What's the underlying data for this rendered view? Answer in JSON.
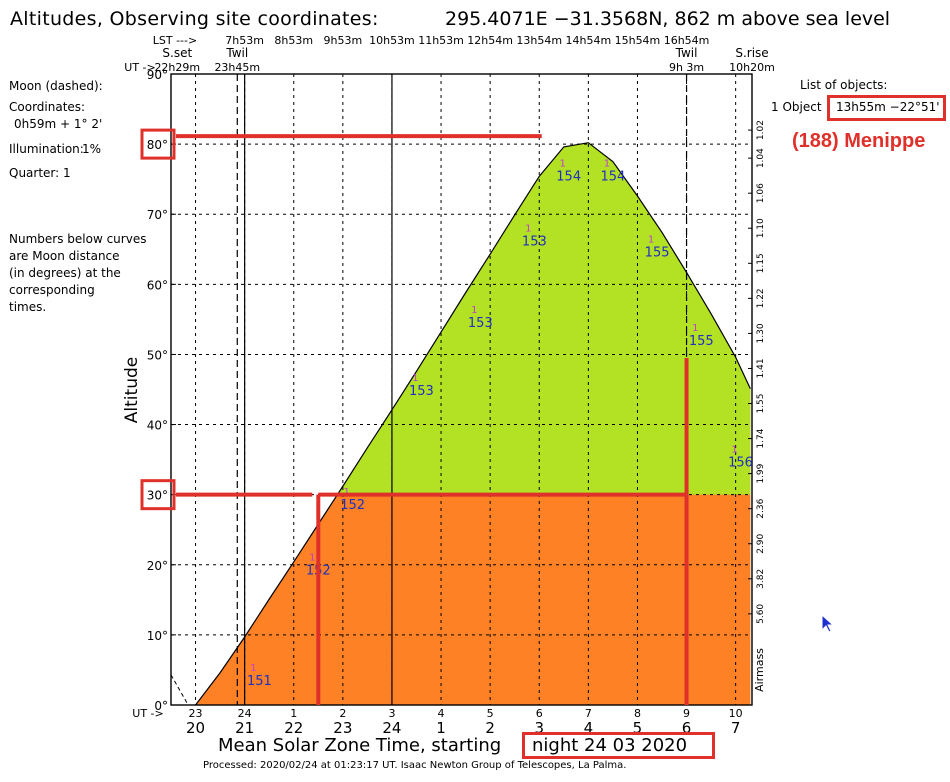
{
  "header": {
    "title": "Altitudes, Observing site coordinates:",
    "site": "295.4071E −31.3568N,  862 m above sea level"
  },
  "lst_row": {
    "label": "LST --->",
    "ticks": [
      "7h53m",
      "8h53m",
      "9h53m",
      "10h53m",
      "11h53m",
      "12h54m",
      "13h54m",
      "14h54m",
      "15h54m",
      "16h54m"
    ]
  },
  "events": {
    "sunset_label": "S.set",
    "twil_label": "Twil",
    "sunrise_label": "S.rise",
    "ut_label": "UT ->",
    "sunset_time": "22h29m",
    "twil_eve_time": "23h45m",
    "twil_morn_time": "9h 3m",
    "sunrise_time": "10h20m"
  },
  "moon_panel": {
    "heading": "Moon (dashed):",
    "coord_label": "Coordinates:",
    "coord_value": "0h59m  + 1° 2'",
    "illum_label": "Illumination:",
    "illum_value": "1%",
    "quarter": "Quarter: 1",
    "note_lines": [
      "Numbers below curves",
      "are Moon distance",
      "(in degrees) at the",
      "corresponding",
      "times."
    ]
  },
  "objects": {
    "heading": "List of objects:",
    "item_prefix": "1 Object",
    "coords": "13h55m −22°51'",
    "name": "(188) Menippe"
  },
  "footer": {
    "caption_prefix": "Mean Solar Zone Time, starting",
    "night": "night 24 03 2020",
    "processed": "Processed: 2020/02/24 at 01:23:17 UT. Isaac  Newton Group of Telescopes, La Palma."
  },
  "chart_data": {
    "type": "area",
    "title": "Altitudes, Observing site coordinates:",
    "ylabel": "Altitude",
    "y2label": "Airmass",
    "xlabel": "Mean Solar Zone Time, starting night 24 03 2020",
    "ylim": [
      0,
      90
    ],
    "xlim": [
      19.5,
      31.3
    ],
    "yticks": [
      0,
      10,
      20,
      30,
      40,
      50,
      60,
      70,
      80,
      90
    ],
    "ytick_labels": [
      "0°",
      "10°",
      "20°",
      "30°",
      "40°",
      "50°",
      "60°",
      "70°",
      "80°",
      "90°"
    ],
    "xtick_values": [
      20,
      21,
      22,
      23,
      24,
      25,
      26,
      27,
      28,
      29,
      30,
      31
    ],
    "xtick_labels": [
      "20",
      "21",
      "22",
      "23",
      "24",
      "1",
      "2",
      "3",
      "4",
      "5",
      "6",
      "7"
    ],
    "ut_tick_labels": [
      "23",
      "24",
      "1",
      "2",
      "3",
      "4",
      "5",
      "6",
      "7",
      "8",
      "9",
      "10"
    ],
    "airmass_labels": [
      {
        "alt": 82,
        "label": "1.02"
      },
      {
        "alt": 78,
        "label": "1.04"
      },
      {
        "alt": 73,
        "label": "1.06"
      },
      {
        "alt": 68,
        "label": "1.10"
      },
      {
        "alt": 63,
        "label": "1.15"
      },
      {
        "alt": 58,
        "label": "1.22"
      },
      {
        "alt": 53,
        "label": "1.30"
      },
      {
        "alt": 48,
        "label": "1.41"
      },
      {
        "alt": 43,
        "label": "1.55"
      },
      {
        "alt": 38,
        "label": "1.74"
      },
      {
        "alt": 33,
        "label": "1.99"
      },
      {
        "alt": 28,
        "label": "2.36"
      },
      {
        "alt": 23,
        "label": "2.90"
      },
      {
        "alt": 18,
        "label": "3.82"
      },
      {
        "alt": 13,
        "label": "5.60"
      }
    ],
    "object_curve": {
      "x": [
        20,
        20.5,
        21,
        21.5,
        22,
        22.5,
        23,
        23.5,
        24,
        24.5,
        25,
        25.5,
        26,
        26.5,
        27,
        27.5,
        28,
        28.5,
        29,
        29.5,
        30,
        30.5,
        31,
        31.3
      ],
      "y": [
        0,
        4.6,
        9.7,
        15.1,
        20.4,
        25.8,
        31.2,
        36.7,
        42.1,
        47.6,
        53.2,
        58.8,
        64.3,
        69.9,
        75.4,
        79.6,
        80.2,
        77.5,
        72.6,
        67.4,
        61.7,
        55.8,
        49.6,
        45.1
      ]
    },
    "moon_curve_dashed": {
      "x": [
        19.5,
        19.85
      ],
      "y": [
        4.3,
        0
      ]
    },
    "moon_distances": [
      {
        "x": 21.3,
        "y": 3.7,
        "label": "151"
      },
      {
        "x": 22.5,
        "y": 19.5,
        "label": "152"
      },
      {
        "x": 23.2,
        "y": 28.8,
        "label": "152"
      },
      {
        "x": 24.6,
        "y": 45.1,
        "label": "153"
      },
      {
        "x": 25.8,
        "y": 54.8,
        "label": "153"
      },
      {
        "x": 26.9,
        "y": 66.4,
        "label": "153"
      },
      {
        "x": 27.6,
        "y": 75.7,
        "label": "154"
      },
      {
        "x": 28.5,
        "y": 75.7,
        "label": "154"
      },
      {
        "x": 29.4,
        "y": 64.8,
        "label": "155"
      },
      {
        "x": 30.3,
        "y": 52.2,
        "label": "155"
      },
      {
        "x": 31.1,
        "y": 34.9,
        "label": "156"
      }
    ],
    "vertical_lines": [
      {
        "x": 20.85,
        "style": "dashed",
        "meaning": "sunset"
      },
      {
        "x": 21.0,
        "style": "solid",
        "meaning": "evening twilight"
      },
      {
        "x": 24.0,
        "style": "solid",
        "meaning": "midnight"
      },
      {
        "x": 30.0,
        "style": "dashed",
        "meaning": "morning twilight"
      }
    ],
    "colors": {
      "above_30": "#b3e124",
      "below_30": "#ff8125",
      "highlight": "#e0302a"
    },
    "highlight": {
      "peak_altitude": 80,
      "threshold_altitude": 30,
      "window_start": 22.5,
      "window_end": 30.0
    }
  }
}
